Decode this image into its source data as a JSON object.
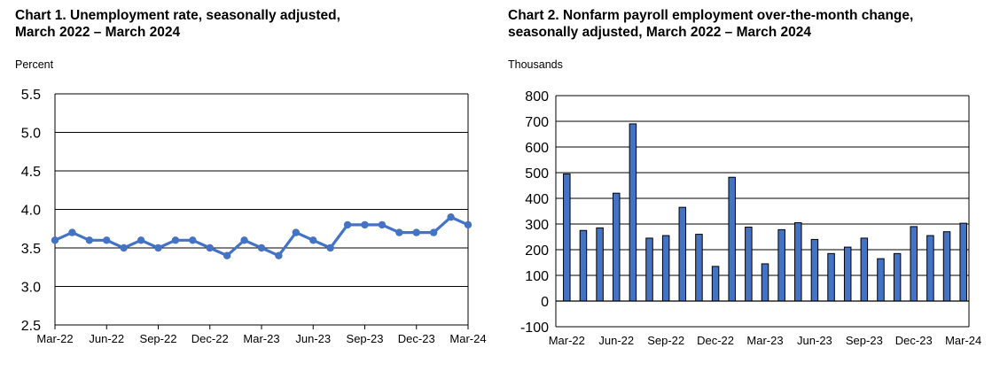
{
  "chart_data": [
    {
      "type": "line",
      "title_line1": "Chart 1. Unemployment rate, seasonally adjusted,",
      "title_line2": "March 2022 – March 2024",
      "ylabel": "Percent",
      "ylim": [
        2.5,
        5.5
      ],
      "yticks": [
        "2.5",
        "3.0",
        "3.5",
        "4.0",
        "4.5",
        "5.0",
        "5.5"
      ],
      "xtick_labels": [
        "Mar-22",
        "Jun-22",
        "Sep-22",
        "Dec-22",
        "Mar-23",
        "Jun-23",
        "Sep-23",
        "Dec-23",
        "Mar-24"
      ],
      "categories": [
        "Mar-22",
        "Apr-22",
        "May-22",
        "Jun-22",
        "Jul-22",
        "Aug-22",
        "Sep-22",
        "Oct-22",
        "Nov-22",
        "Dec-22",
        "Jan-23",
        "Feb-23",
        "Mar-23",
        "Apr-23",
        "May-23",
        "Jun-23",
        "Jul-23",
        "Aug-23",
        "Sep-23",
        "Oct-23",
        "Nov-23",
        "Dec-23",
        "Jan-24",
        "Feb-24",
        "Mar-24"
      ],
      "values": [
        3.6,
        3.7,
        3.6,
        3.6,
        3.5,
        3.6,
        3.5,
        3.6,
        3.6,
        3.5,
        3.4,
        3.6,
        3.5,
        3.4,
        3.7,
        3.6,
        3.5,
        3.8,
        3.8,
        3.8,
        3.7,
        3.7,
        3.7,
        3.9,
        3.8
      ],
      "grid": true,
      "color": "#4472C4"
    },
    {
      "type": "bar",
      "title_line1": "Chart 2. Nonfarm payroll employment over-the-month change,",
      "title_line2": "seasonally adjusted, March 2022 – March 2024",
      "ylabel": "Thousands",
      "ylim": [
        -100,
        800
      ],
      "yticks": [
        "-100",
        "0",
        "100",
        "200",
        "300",
        "400",
        "500",
        "600",
        "700",
        "800"
      ],
      "xtick_labels": [
        "Mar-22",
        "Jun-22",
        "Sep-22",
        "Dec-22",
        "Mar-23",
        "Jun-23",
        "Sep-23",
        "Dec-23",
        "Mar-24"
      ],
      "categories": [
        "Mar-22",
        "Apr-22",
        "May-22",
        "Jun-22",
        "Jul-22",
        "Aug-22",
        "Sep-22",
        "Oct-22",
        "Nov-22",
        "Dec-22",
        "Jan-23",
        "Feb-23",
        "Mar-23",
        "Apr-23",
        "May-23",
        "Jun-23",
        "Jul-23",
        "Aug-23",
        "Sep-23",
        "Oct-23",
        "Nov-23",
        "Dec-23",
        "Jan-24",
        "Feb-24",
        "Mar-24"
      ],
      "values": [
        495,
        275,
        285,
        420,
        690,
        245,
        255,
        365,
        260,
        135,
        482,
        288,
        145,
        278,
        305,
        240,
        185,
        210,
        245,
        165,
        185,
        290,
        255,
        270,
        303
      ],
      "grid": true,
      "color": "#4472C4"
    }
  ]
}
